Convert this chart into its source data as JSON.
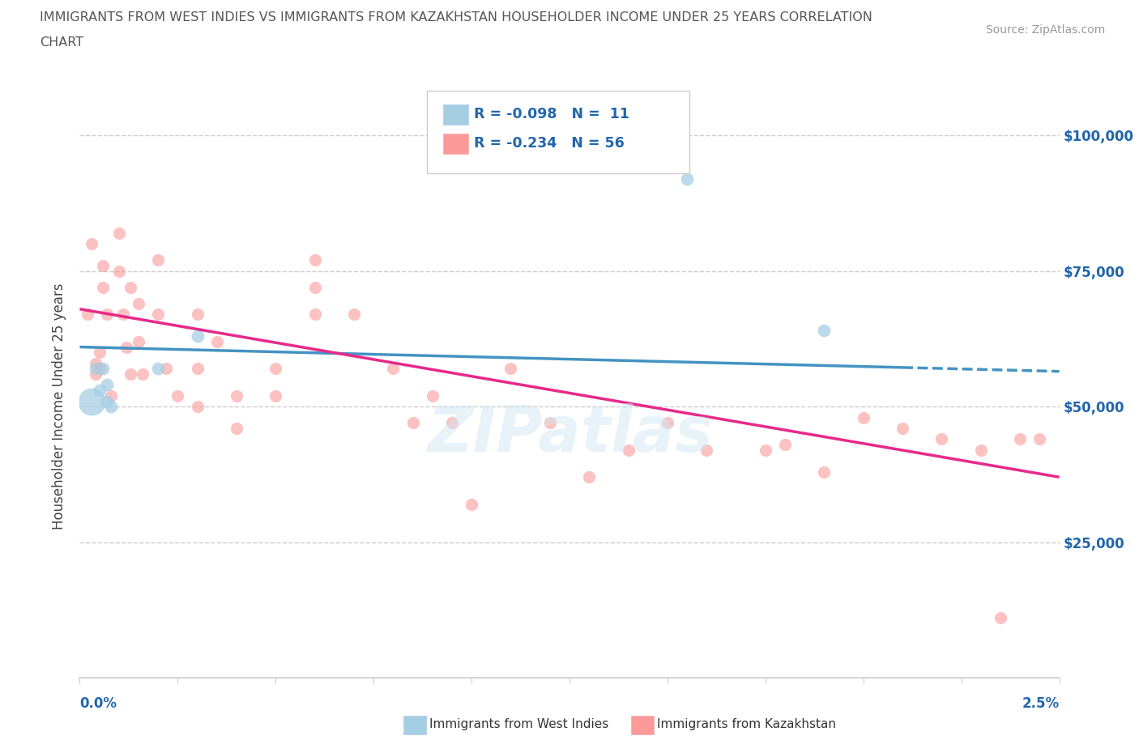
{
  "title_line1": "IMMIGRANTS FROM WEST INDIES VS IMMIGRANTS FROM KAZAKHSTAN HOUSEHOLDER INCOME UNDER 25 YEARS CORRELATION",
  "title_line2": "CHART",
  "source_text": "Source: ZipAtlas.com",
  "ylabel": "Householder Income Under 25 years",
  "xmin": 0.0,
  "xmax": 0.025,
  "ymin": 0,
  "ymax": 100000,
  "yticks": [
    0,
    25000,
    50000,
    75000,
    100000
  ],
  "ytick_labels": [
    "",
    "$25,000",
    "$50,000",
    "$75,000",
    "$100,000"
  ],
  "color_blue": "#a6cee3",
  "color_pink": "#fb9a99",
  "color_blue_dark": "#4393c3",
  "color_pink_dark": "#e7298a",
  "color_blue_text": "#2166ac",
  "watermark": "ZIPatlas",
  "grid_color": "#cccccc",
  "background_color": "#ffffff",
  "west_indies_x": [
    0.0003,
    0.0004,
    0.0005,
    0.0006,
    0.0007,
    0.0007,
    0.0008,
    0.002,
    0.003,
    0.0155,
    0.019
  ],
  "west_indies_y": [
    51000,
    57000,
    53000,
    57000,
    54000,
    51000,
    50000,
    57000,
    63000,
    92000,
    64000
  ],
  "west_indies_large": [
    0,
    1,
    1,
    1,
    1,
    1,
    1,
    1,
    1,
    1,
    1
  ],
  "kazakhstan_x": [
    0.0002,
    0.0003,
    0.0004,
    0.0004,
    0.0005,
    0.0005,
    0.0006,
    0.0006,
    0.0007,
    0.0008,
    0.001,
    0.001,
    0.0011,
    0.0012,
    0.0013,
    0.0013,
    0.0015,
    0.0015,
    0.0016,
    0.002,
    0.002,
    0.0022,
    0.0025,
    0.003,
    0.003,
    0.003,
    0.0035,
    0.004,
    0.004,
    0.005,
    0.005,
    0.006,
    0.006,
    0.006,
    0.007,
    0.008,
    0.0085,
    0.009,
    0.0095,
    0.01,
    0.011,
    0.012,
    0.013,
    0.014,
    0.015,
    0.016,
    0.0175,
    0.018,
    0.019,
    0.02,
    0.021,
    0.022,
    0.023,
    0.0235,
    0.024,
    0.0245
  ],
  "kazakhstan_y": [
    67000,
    80000,
    58000,
    56000,
    60000,
    57000,
    76000,
    72000,
    67000,
    52000,
    82000,
    75000,
    67000,
    61000,
    56000,
    72000,
    69000,
    62000,
    56000,
    77000,
    67000,
    57000,
    52000,
    67000,
    57000,
    50000,
    62000,
    52000,
    46000,
    57000,
    52000,
    67000,
    77000,
    72000,
    67000,
    57000,
    47000,
    52000,
    47000,
    32000,
    57000,
    47000,
    37000,
    42000,
    47000,
    42000,
    42000,
    43000,
    38000,
    48000,
    46000,
    44000,
    42000,
    11000,
    44000,
    44000
  ],
  "wi_line_x0": 0.0,
  "wi_line_x1": 0.025,
  "wi_line_y0": 61000,
  "wi_line_y1": 56500,
  "kz_line_x0": 0.0,
  "kz_line_x1": 0.025,
  "kz_line_y0": 68000,
  "kz_line_y1": 37000
}
